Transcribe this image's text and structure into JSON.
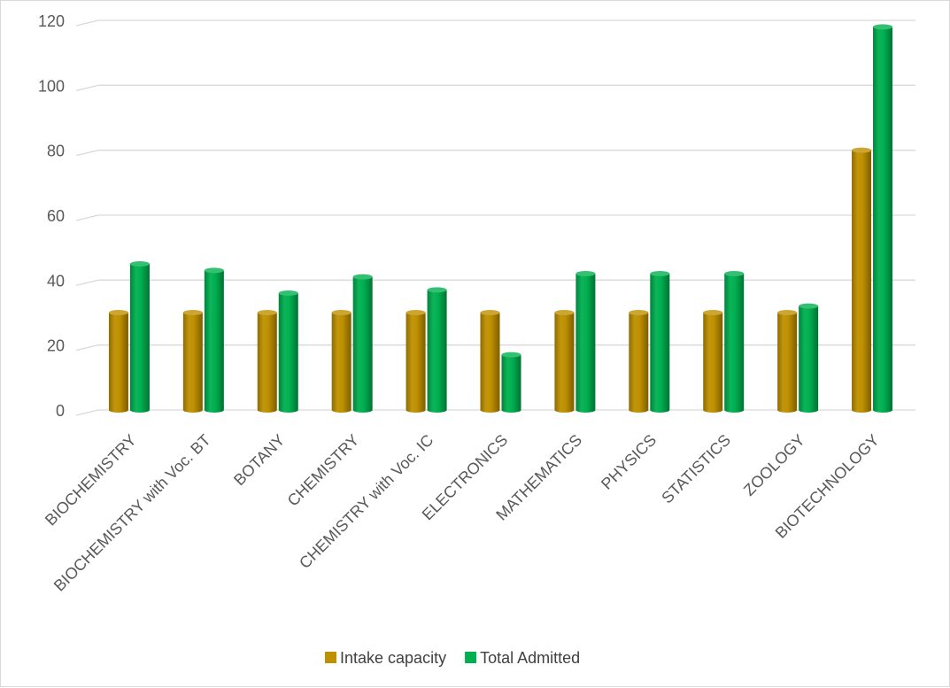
{
  "chart_data": {
    "type": "bar",
    "title": "",
    "xlabel": "",
    "ylabel": "",
    "categories": [
      "BIOCHEMISTRY",
      "BIOCHEMISTRY with Voc. BT",
      "BOTANY",
      "CHEMISTRY",
      "CHEMISTRY with Voc. IC",
      "ELECTRONICS",
      "MATHEMATICS",
      "PHYSICS",
      "STATISTICS",
      "ZOOLOGY",
      "BIOTECHNOLOGY"
    ],
    "series": [
      {
        "name": "Intake capacity",
        "color": "#bf9000",
        "values": [
          30,
          30,
          30,
          30,
          30,
          30,
          30,
          30,
          30,
          30,
          80
        ]
      },
      {
        "name": "Total Admitted",
        "color": "#00b050",
        "values": [
          45,
          43,
          36,
          41,
          37,
          17,
          42,
          42,
          42,
          32,
          118
        ]
      }
    ],
    "ylim": [
      0,
      120
    ],
    "yticks": [
      "0",
      "20",
      "40",
      "60",
      "80",
      "100",
      "120"
    ],
    "grid": true,
    "legend_position": "bottom",
    "bar_style": "3d-cylinder"
  }
}
